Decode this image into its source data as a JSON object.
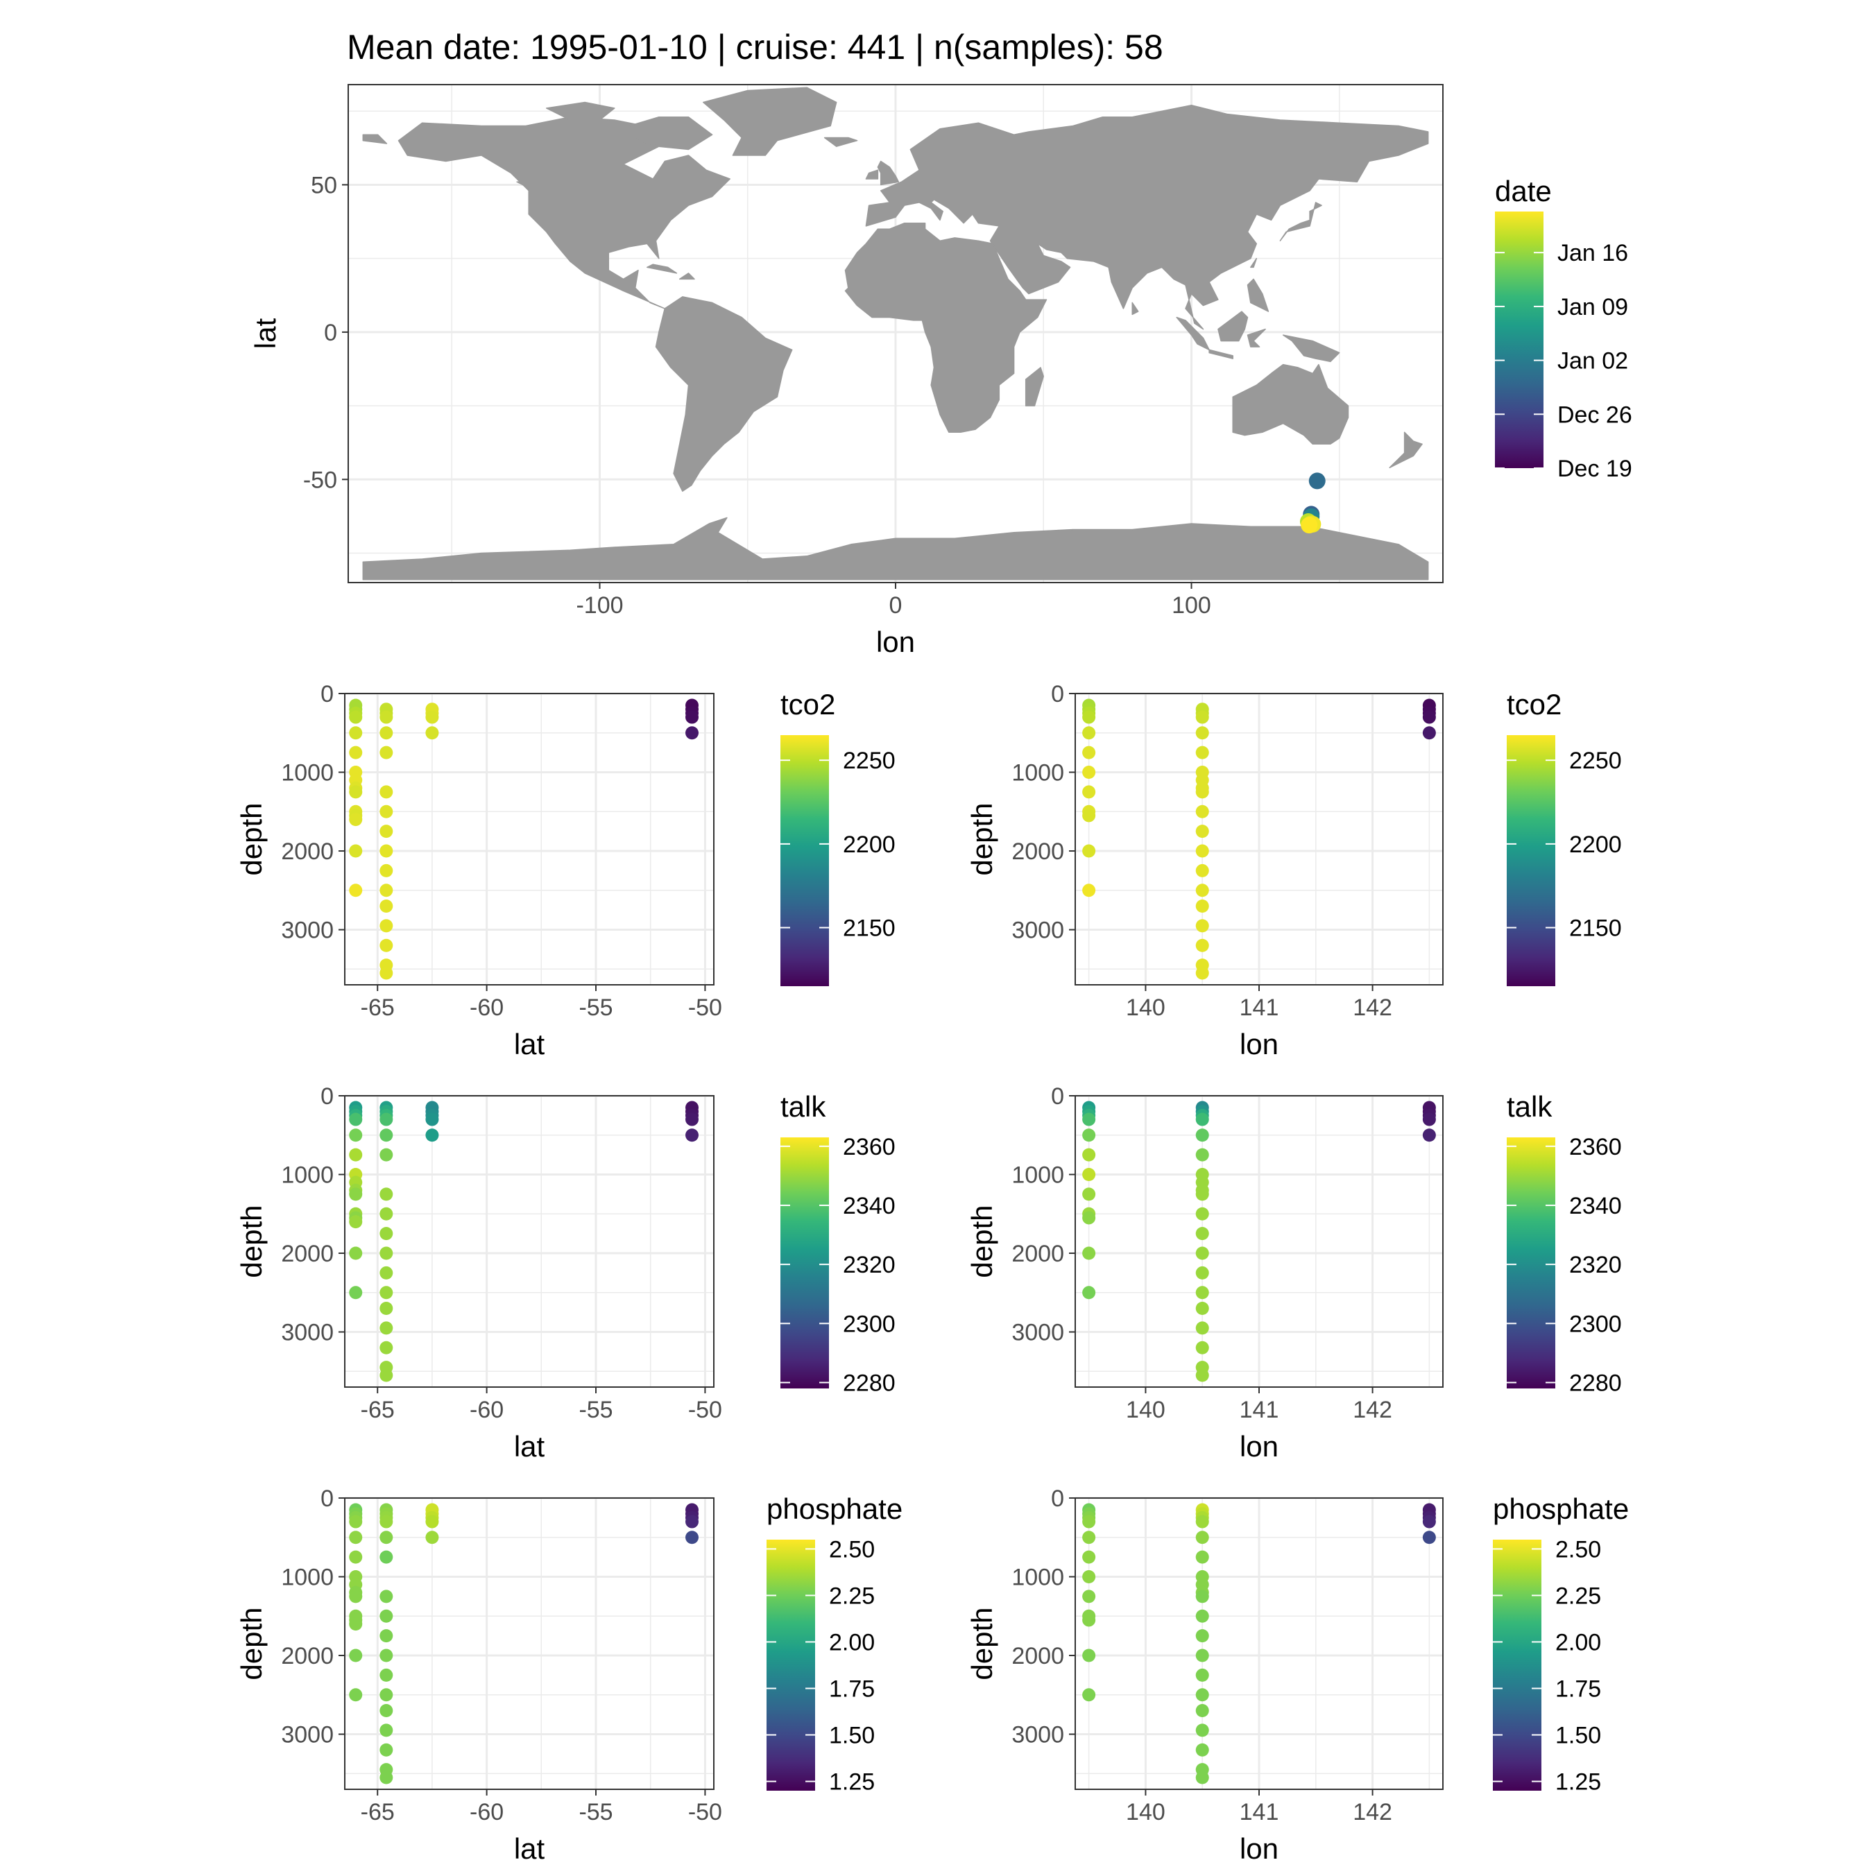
{
  "title": "Mean date: 1995-01-10 | cruise: 441 | n(samples): 58",
  "colors": {
    "land": "#999999",
    "grid": "#ebebeb",
    "panel_border": "#333333",
    "viridis": [
      "#440154",
      "#482878",
      "#3e4989",
      "#31688e",
      "#26828e",
      "#1f9e89",
      "#35b779",
      "#6ece58",
      "#b5de2b",
      "#fde725"
    ]
  },
  "chart_data": [
    {
      "type": "scatter",
      "id": "map",
      "xlabel": "lon",
      "ylabel": "lat",
      "xlim": [
        -185,
        185
      ],
      "ylim": [
        -85,
        84
      ],
      "xticks": [
        -100,
        0,
        100
      ],
      "yticks": [
        -50,
        0,
        50
      ],
      "grid": true,
      "background": "world land map (grey)",
      "legend": {
        "title": "date",
        "placement": "right",
        "labels": [
          "Jan 16",
          "Jan 09",
          "Jan 02",
          "Dec 26",
          "Dec 19"
        ],
        "label_positions": [
          0.84,
          0.63,
          0.42,
          0.21,
          0.0
        ]
      },
      "points": [
        {
          "x": 142.5,
          "y": -50.5,
          "c": 0.35
        },
        {
          "x": 140.5,
          "y": -61.8,
          "c": 0.3
        },
        {
          "x": 140.5,
          "y": -62.6,
          "c": 0.45
        },
        {
          "x": 139.5,
          "y": -64.3,
          "c": 0.9
        },
        {
          "x": 140.5,
          "y": -65.0,
          "c": 0.95
        },
        {
          "x": 141.0,
          "y": -65.2,
          "c": 0.98
        },
        {
          "x": 139.8,
          "y": -65.5,
          "c": 1.0
        }
      ]
    },
    {
      "type": "scatter",
      "id": "tco2-lat",
      "xlabel": "lat",
      "ylabel": "depth",
      "xlim": [
        -66.5,
        -49.6
      ],
      "ylim": [
        0,
        3700
      ],
      "y_reversed": true,
      "xticks": [
        -65,
        -60,
        -55,
        -50
      ],
      "yticks": [
        0,
        1000,
        2000,
        3000
      ],
      "grid": true,
      "legend": {
        "title": "tco2",
        "placement": "right",
        "range": [
          2115,
          2265
        ],
        "labels": [
          "2250",
          "2200",
          "2150"
        ],
        "values": [
          2250,
          2200,
          2150
        ]
      },
      "series": [
        {
          "x": -66,
          "depth": [
            150,
            200,
            250,
            300,
            500,
            750,
            1000,
            1100,
            1200,
            1250,
            1500,
            1550,
            1600,
            2000,
            2500
          ],
          "value": [
            2245,
            2245,
            2248,
            2250,
            2255,
            2258,
            2260,
            2260,
            2258,
            2256,
            2258,
            2257,
            2258,
            2257,
            2262
          ]
        },
        {
          "x": -64.6,
          "depth": [
            200,
            250,
            300,
            500,
            750,
            1250,
            1500,
            1750,
            2000,
            2250,
            2500,
            2700,
            2950,
            3200,
            3450,
            3550
          ],
          "value": [
            2252,
            2252,
            2254,
            2256,
            2257,
            2258,
            2258,
            2258,
            2259,
            2259,
            2259,
            2259,
            2259,
            2259,
            2259,
            2259
          ]
        },
        {
          "x": -62.5,
          "depth": [
            200,
            250,
            300,
            500
          ],
          "value": [
            2258,
            2258,
            2257,
            2256
          ]
        },
        {
          "x": -50.6,
          "depth": [
            150,
            200,
            250,
            300,
            500
          ],
          "value": [
            2118,
            2118,
            2119,
            2120,
            2125
          ]
        }
      ]
    },
    {
      "type": "scatter",
      "id": "tco2-lon",
      "xlabel": "lon",
      "ylabel": "depth",
      "xlim": [
        139.38,
        142.62
      ],
      "ylim": [
        0,
        3700
      ],
      "y_reversed": true,
      "xticks": [
        140,
        141,
        142
      ],
      "yticks": [
        0,
        1000,
        2000,
        3000
      ],
      "grid": true,
      "legend": {
        "title": "tco2",
        "placement": "right",
        "range": [
          2115,
          2265
        ],
        "labels": [
          "2250",
          "2200",
          "2150"
        ],
        "values": [
          2250,
          2200,
          2150
        ]
      },
      "series": [
        {
          "x": 139.5,
          "depth": [
            150,
            200,
            250,
            300,
            500,
            750,
            1000,
            1250,
            1500,
            1550,
            2000,
            2500
          ],
          "value": [
            2245,
            2246,
            2248,
            2250,
            2255,
            2258,
            2260,
            2258,
            2258,
            2257,
            2257,
            2262
          ]
        },
        {
          "x": 140.5,
          "depth": [
            200,
            250,
            300,
            500,
            750,
            1000,
            1100,
            1200,
            1250,
            1500,
            1750,
            2000,
            2250,
            2500,
            2700,
            2950,
            3200,
            3450,
            3550
          ],
          "value": [
            2252,
            2252,
            2254,
            2256,
            2257,
            2258,
            2258,
            2258,
            2258,
            2258,
            2258,
            2259,
            2259,
            2259,
            2259,
            2259,
            2259,
            2259,
            2259
          ]
        },
        {
          "x": 142.5,
          "depth": [
            150,
            200,
            250,
            300,
            500
          ],
          "value": [
            2118,
            2118,
            2119,
            2120,
            2125
          ]
        }
      ]
    },
    {
      "type": "scatter",
      "id": "talk-lat",
      "xlabel": "lat",
      "ylabel": "depth",
      "xlim": [
        -66.5,
        -49.6
      ],
      "ylim": [
        0,
        3700
      ],
      "y_reversed": true,
      "xticks": [
        -65,
        -60,
        -55,
        -50
      ],
      "yticks": [
        0,
        1000,
        2000,
        3000
      ],
      "grid": true,
      "legend": {
        "title": "talk",
        "placement": "right",
        "range": [
          2278,
          2363
        ],
        "labels": [
          "2360",
          "2340",
          "2320",
          "2300",
          "2280"
        ],
        "values": [
          2360,
          2340,
          2320,
          2300,
          2280
        ]
      },
      "series": [
        {
          "x": -66,
          "depth": [
            150,
            200,
            250,
            300,
            500,
            750,
            1000,
            1100,
            1200,
            1250,
            1500,
            1550,
            1600,
            2000,
            2500
          ],
          "value": [
            2325,
            2328,
            2332,
            2338,
            2345,
            2352,
            2355,
            2352,
            2350,
            2348,
            2350,
            2348,
            2350,
            2348,
            2345
          ]
        },
        {
          "x": -64.6,
          "depth": [
            150,
            200,
            250,
            300,
            500,
            750,
            1250,
            1500,
            1750,
            2000,
            2250,
            2500,
            2700,
            2950,
            3200,
            3450,
            3550
          ],
          "value": [
            2326,
            2330,
            2334,
            2338,
            2342,
            2346,
            2350,
            2350,
            2350,
            2350,
            2350,
            2350,
            2350,
            2350,
            2350,
            2350,
            2350
          ]
        },
        {
          "x": -62.5,
          "depth": [
            150,
            200,
            250,
            300,
            500
          ],
          "value": [
            2318,
            2318,
            2320,
            2322,
            2325
          ]
        },
        {
          "x": -50.6,
          "depth": [
            150,
            200,
            250,
            300,
            500
          ],
          "value": [
            2282,
            2282,
            2283,
            2284,
            2286
          ]
        }
      ]
    },
    {
      "type": "scatter",
      "id": "talk-lon",
      "xlabel": "lon",
      "ylabel": "depth",
      "xlim": [
        139.38,
        142.62
      ],
      "ylim": [
        0,
        3700
      ],
      "y_reversed": true,
      "xticks": [
        140,
        141,
        142
      ],
      "yticks": [
        0,
        1000,
        2000,
        3000
      ],
      "grid": true,
      "legend": {
        "title": "talk",
        "placement": "right",
        "range": [
          2278,
          2363
        ],
        "labels": [
          "2360",
          "2340",
          "2320",
          "2300",
          "2280"
        ],
        "values": [
          2360,
          2340,
          2320,
          2300,
          2280
        ]
      },
      "series": [
        {
          "x": 139.5,
          "depth": [
            150,
            200,
            250,
            300,
            500,
            750,
            1000,
            1250,
            1500,
            1550,
            2000,
            2500
          ],
          "value": [
            2325,
            2328,
            2332,
            2338,
            2345,
            2352,
            2355,
            2350,
            2350,
            2348,
            2348,
            2345
          ]
        },
        {
          "x": 140.5,
          "depth": [
            150,
            200,
            250,
            300,
            500,
            750,
            1000,
            1100,
            1200,
            1250,
            1500,
            1750,
            2000,
            2250,
            2500,
            2700,
            2950,
            3200,
            3450,
            3550
          ],
          "value": [
            2318,
            2322,
            2330,
            2336,
            2342,
            2346,
            2350,
            2350,
            2350,
            2350,
            2350,
            2350,
            2350,
            2350,
            2350,
            2350,
            2350,
            2350,
            2350,
            2350
          ]
        },
        {
          "x": 142.5,
          "depth": [
            150,
            200,
            250,
            300,
            500
          ],
          "value": [
            2282,
            2282,
            2283,
            2284,
            2286
          ]
        }
      ]
    },
    {
      "type": "scatter",
      "id": "phosphate-lat",
      "xlabel": "lat",
      "ylabel": "depth",
      "xlim": [
        -66.5,
        -49.6
      ],
      "ylim": [
        0,
        3700
      ],
      "y_reversed": true,
      "xticks": [
        -65,
        -60,
        -55,
        -50
      ],
      "yticks": [
        0,
        1000,
        2000,
        3000
      ],
      "grid": true,
      "legend": {
        "title": "phosphate",
        "placement": "right",
        "range": [
          1.2,
          2.55
        ],
        "labels": [
          "2.50",
          "2.25",
          "2.00",
          "1.75",
          "1.50",
          "1.25"
        ],
        "values": [
          2.5,
          2.25,
          2.0,
          1.75,
          1.5,
          1.25
        ]
      },
      "series": [
        {
          "x": -66,
          "depth": [
            150,
            200,
            250,
            300,
            500,
            750,
            1000,
            1100,
            1200,
            1250,
            1500,
            1550,
            1600,
            2000,
            2500
          ],
          "value": [
            2.25,
            2.28,
            2.3,
            2.32,
            2.32,
            2.32,
            2.32,
            2.32,
            2.3,
            2.3,
            2.3,
            2.3,
            2.3,
            2.28,
            2.28
          ]
        },
        {
          "x": -64.6,
          "depth": [
            150,
            200,
            250,
            300,
            500,
            750,
            1250,
            1500,
            1750,
            2000,
            2250,
            2500,
            2700,
            2950,
            3200,
            3450,
            3550
          ],
          "value": [
            2.3,
            2.32,
            2.33,
            2.34,
            2.3,
            2.25,
            2.28,
            2.28,
            2.28,
            2.28,
            2.28,
            2.28,
            2.28,
            2.28,
            2.28,
            2.28,
            2.28
          ]
        },
        {
          "x": -62.5,
          "depth": [
            150,
            200,
            250,
            300,
            500
          ],
          "value": [
            2.45,
            2.45,
            2.42,
            2.4,
            2.35
          ]
        },
        {
          "x": -50.6,
          "depth": [
            150,
            200,
            250,
            300,
            500
          ],
          "value": [
            1.3,
            1.3,
            1.32,
            1.35,
            1.5
          ]
        }
      ]
    },
    {
      "type": "scatter",
      "id": "phosphate-lon",
      "xlabel": "lon",
      "ylabel": "depth",
      "xlim": [
        139.38,
        142.62
      ],
      "ylim": [
        0,
        3700
      ],
      "y_reversed": true,
      "xticks": [
        140,
        141,
        142
      ],
      "yticks": [
        0,
        1000,
        2000,
        3000
      ],
      "grid": true,
      "legend": {
        "title": "phosphate",
        "placement": "right",
        "range": [
          1.2,
          2.55
        ],
        "labels": [
          "2.50",
          "2.25",
          "2.00",
          "1.75",
          "1.50",
          "1.25"
        ],
        "values": [
          2.5,
          2.25,
          2.0,
          1.75,
          1.5,
          1.25
        ]
      },
      "series": [
        {
          "x": 139.5,
          "depth": [
            150,
            200,
            250,
            300,
            500,
            750,
            1000,
            1250,
            1500,
            1550,
            2000,
            2500
          ],
          "value": [
            2.25,
            2.28,
            2.3,
            2.32,
            2.32,
            2.32,
            2.32,
            2.3,
            2.3,
            2.3,
            2.28,
            2.28
          ]
        },
        {
          "x": 140.5,
          "depth": [
            150,
            200,
            250,
            300,
            500,
            750,
            1000,
            1100,
            1200,
            1250,
            1500,
            1750,
            2000,
            2250,
            2500,
            2700,
            2950,
            3200,
            3450,
            3550
          ],
          "value": [
            2.45,
            2.42,
            2.38,
            2.35,
            2.32,
            2.3,
            2.3,
            2.3,
            2.3,
            2.28,
            2.28,
            2.28,
            2.28,
            2.28,
            2.28,
            2.28,
            2.28,
            2.28,
            2.28,
            2.28
          ]
        },
        {
          "x": 142.5,
          "depth": [
            150,
            200,
            250,
            300,
            500
          ],
          "value": [
            1.3,
            1.3,
            1.32,
            1.35,
            1.5
          ]
        }
      ]
    }
  ]
}
